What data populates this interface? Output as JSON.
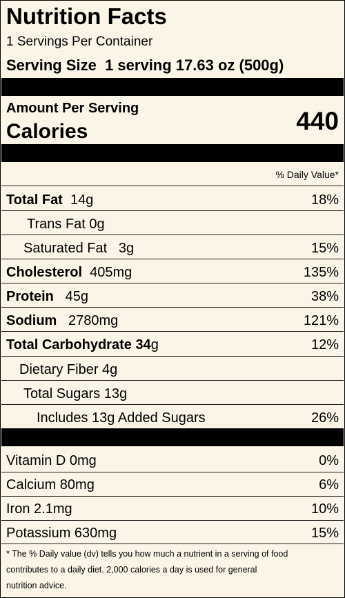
{
  "header": {
    "title": "Nutrition Facts",
    "servings_per_container": "1 Servings Per Container",
    "serving_size_label": "Serving Size",
    "serving_size_value": "1 serving 17.63 oz (500g)"
  },
  "calories": {
    "amount_per_serving": "Amount Per Serving",
    "label": "Calories",
    "value": "440"
  },
  "daily_value_header": "% Daily Value*",
  "nutrients": {
    "total_fat": {
      "label": "Total Fat",
      "amount": "14g",
      "dv": "18%"
    },
    "trans_fat": {
      "text": "Trans Fat 0g"
    },
    "saturated_fat": {
      "label": "Saturated Fat",
      "amount": "3g",
      "dv": "15%"
    },
    "cholesterol": {
      "label": "Cholesterol",
      "amount": "405mg",
      "dv": "135%"
    },
    "protein": {
      "label": "Protein",
      "amount": "45g",
      "dv": "38%"
    },
    "sodium": {
      "label": "Sodium",
      "amount": "2780mg",
      "dv": "121%"
    },
    "total_carbohydrate": {
      "label": "Total Carbohydrate",
      "amount_num": "34",
      "amount_unit": "g",
      "dv": "12%"
    },
    "dietary_fiber": {
      "text": "Dietary Fiber 4g"
    },
    "total_sugars": {
      "text": "Total Sugars 13g"
    },
    "added_sugars": {
      "text": "Includes 13g Added Sugars",
      "dv": "26%"
    }
  },
  "vitamins": {
    "vitamin_d": {
      "text": "Vitamin D 0mg",
      "dv": "0%"
    },
    "calcium": {
      "text": "Calcium 80mg",
      "dv": "6%"
    },
    "iron": {
      "text": "Iron 2.1mg",
      "dv": "10%"
    },
    "potassium": {
      "text": "Potassium 630mg",
      "dv": "15%"
    }
  },
  "footnote": {
    "line1": "* The % Daily value (dv) tells you how much a nutrient in a serving of food",
    "line2": "contributes to a daily diet. 2,000 calories a day is used for general",
    "line3": "nutrition advice."
  }
}
